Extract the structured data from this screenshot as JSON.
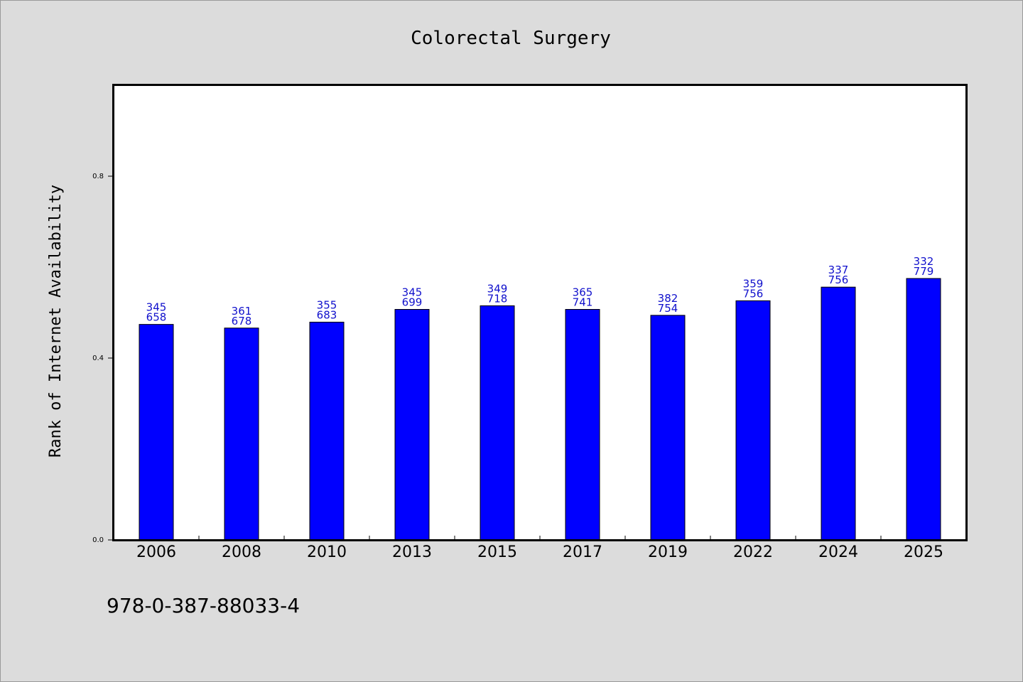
{
  "chart_data": {
    "type": "bar",
    "title": "Colorectal Surgery",
    "xlabel": "",
    "ylabel": "Rank of Internet Availability",
    "categories": [
      "2006",
      "2008",
      "2010",
      "2013",
      "2015",
      "2017",
      "2019",
      "2022",
      "2024",
      "2025"
    ],
    "values": [
      0.474,
      0.466,
      0.479,
      0.507,
      0.515,
      0.507,
      0.494,
      0.526,
      0.556,
      0.575
    ],
    "data_labels": [
      [
        "345",
        "658"
      ],
      [
        "361",
        "678"
      ],
      [
        "355",
        "683"
      ],
      [
        "345",
        "699"
      ],
      [
        "349",
        "718"
      ],
      [
        "365",
        "741"
      ],
      [
        "382",
        "754"
      ],
      [
        "359",
        "756"
      ],
      [
        "337",
        "756"
      ],
      [
        "332",
        "779"
      ]
    ],
    "yticks": [
      0.0,
      0.4,
      0.8
    ],
    "ytick_labels": [
      "0.0",
      "0.4",
      "0.8"
    ],
    "ylim": [
      0,
      1.0
    ],
    "grid": false,
    "bar_color": "#0000ff",
    "label_color": "#1010cc"
  },
  "footnote": "978-0-387-88033-4"
}
